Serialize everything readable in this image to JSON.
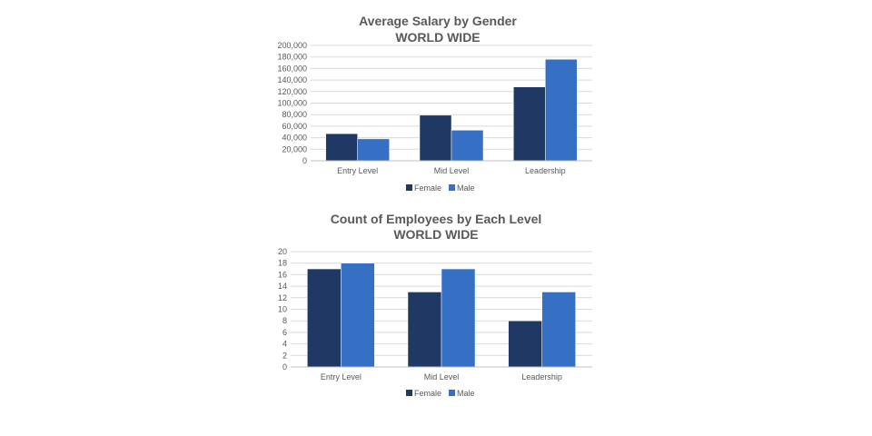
{
  "chart_data": [
    {
      "type": "bar",
      "title": "Average Salary by Gender",
      "subtitle": "WORLD WIDE",
      "categories": [
        "Entry Level",
        "Mid Level",
        "Leadership"
      ],
      "series": [
        {
          "name": "Female",
          "color": "#1f3864",
          "values": [
            47000,
            79000,
            128000
          ]
        },
        {
          "name": "Male",
          "color": "#3670c4",
          "values": [
            38000,
            53000,
            176000
          ]
        }
      ],
      "yticks": [
        "0",
        "20,000",
        "40,000",
        "60,000",
        "80,000",
        "100,000",
        "120,000",
        "140,000",
        "160,000",
        "180,000",
        "200,000"
      ],
      "ylim": [
        0,
        200000
      ],
      "grid": true,
      "legend": "bottom"
    },
    {
      "type": "bar",
      "title": "Count of Employees by Each Level",
      "subtitle": "WORLD WIDE",
      "categories": [
        "Entry Level",
        "Mid Level",
        "Leadership"
      ],
      "series": [
        {
          "name": "Female",
          "color": "#1f3864",
          "values": [
            17,
            13,
            8
          ]
        },
        {
          "name": "Male",
          "color": "#3670c4",
          "values": [
            18,
            17,
            13
          ]
        }
      ],
      "yticks": [
        "0",
        "2",
        "4",
        "6",
        "8",
        "10",
        "12",
        "14",
        "16",
        "18",
        "20"
      ],
      "ylim": [
        0,
        20
      ],
      "grid": true,
      "legend": "bottom"
    }
  ]
}
